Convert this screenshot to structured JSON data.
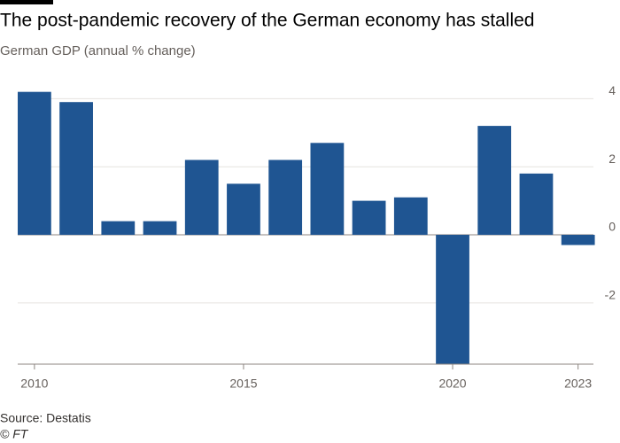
{
  "chart_data": {
    "type": "bar",
    "title": "The post-pandemic recovery of the German economy has stalled",
    "subtitle": "German GDP (annual % change)",
    "source": "Source: Destatis",
    "credit": "© FT",
    "x": [
      2010,
      2011,
      2012,
      2013,
      2014,
      2015,
      2016,
      2017,
      2018,
      2019,
      2020,
      2021,
      2022,
      2023
    ],
    "values": [
      4.2,
      3.9,
      0.4,
      0.4,
      2.2,
      1.5,
      2.2,
      2.7,
      1.0,
      1.1,
      -3.8,
      3.2,
      1.8,
      -0.3
    ],
    "color": "#1f5592",
    "xlim": [
      2009.6,
      2023.6
    ],
    "xticks": [
      2010,
      2015,
      2020,
      2023
    ],
    "ylim": [
      -3.8,
      4.4
    ],
    "yticks": [
      -2,
      0,
      2,
      4
    ],
    "grid": true
  }
}
